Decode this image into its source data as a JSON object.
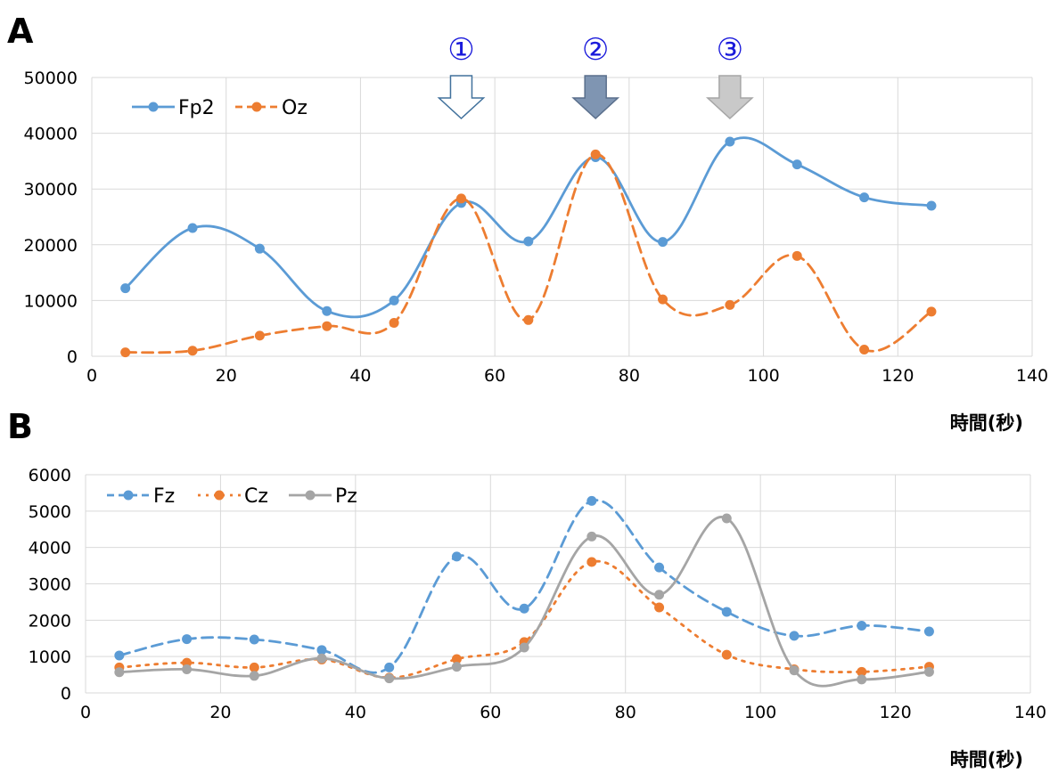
{
  "chart_data": [
    {
      "type": "line",
      "panel_label": "A",
      "title": "",
      "xlabel": "時間(秒)",
      "ylabel": "",
      "xlim": [
        0,
        140
      ],
      "ylim": [
        0,
        50000
      ],
      "xticks": [
        0,
        20,
        40,
        60,
        80,
        100,
        120,
        140
      ],
      "yticks": [
        0,
        10000,
        20000,
        30000,
        40000,
        50000
      ],
      "grid": true,
      "legend_position": "top-left",
      "x": [
        5,
        15,
        25,
        35,
        45,
        55,
        65,
        75,
        85,
        95,
        105,
        115,
        125
      ],
      "series": [
        {
          "name": "Fp2",
          "color": "#5b9bd5",
          "style": "solid",
          "marker": "circle",
          "values": [
            12200,
            23000,
            19300,
            8100,
            10000,
            27500,
            20600,
            35700,
            20500,
            38500,
            34400,
            28500,
            27000
          ]
        },
        {
          "name": "Oz",
          "color": "#ed7d31",
          "style": "dashed",
          "marker": "circle",
          "values": [
            700,
            1000,
            3700,
            5400,
            6000,
            28300,
            6500,
            36200,
            10200,
            9200,
            18000,
            1200,
            8000
          ]
        }
      ],
      "annotations": [
        {
          "label": "①",
          "x": 55,
          "arrow_fill": "#ffffff",
          "arrow_stroke": "#41719c"
        },
        {
          "label": "②",
          "x": 75,
          "arrow_fill": "#7f95b2",
          "arrow_stroke": "#5a6f8c"
        },
        {
          "label": "③",
          "x": 95,
          "arrow_fill": "#c9c9c9",
          "arrow_stroke": "#a6a6a6"
        }
      ]
    },
    {
      "type": "line",
      "panel_label": "B",
      "title": "",
      "xlabel": "時間(秒)",
      "ylabel": "",
      "xlim": [
        0,
        140
      ],
      "ylim": [
        0,
        6000
      ],
      "xticks": [
        0,
        20,
        40,
        60,
        80,
        100,
        120,
        140
      ],
      "yticks": [
        0,
        1000,
        2000,
        3000,
        4000,
        5000,
        6000
      ],
      "grid": true,
      "legend_position": "top-left",
      "x": [
        5,
        15,
        25,
        35,
        45,
        55,
        65,
        75,
        85,
        95,
        105,
        115,
        125
      ],
      "series": [
        {
          "name": "Fz",
          "color": "#5b9bd5",
          "style": "dashed",
          "marker": "circle",
          "values": [
            1030,
            1480,
            1470,
            1180,
            700,
            3750,
            2320,
            5280,
            3450,
            2230,
            1570,
            1850,
            1690
          ]
        },
        {
          "name": "Cz",
          "color": "#ed7d31",
          "style": "dotted",
          "marker": "circle",
          "values": [
            700,
            830,
            700,
            920,
            420,
            930,
            1400,
            3600,
            2350,
            1050,
            650,
            580,
            720
          ]
        },
        {
          "name": "Pz",
          "color": "#a5a5a5",
          "style": "solid",
          "marker": "circle",
          "values": [
            570,
            650,
            470,
            950,
            400,
            720,
            1250,
            4300,
            2700,
            4800,
            620,
            370,
            580
          ]
        }
      ]
    }
  ]
}
